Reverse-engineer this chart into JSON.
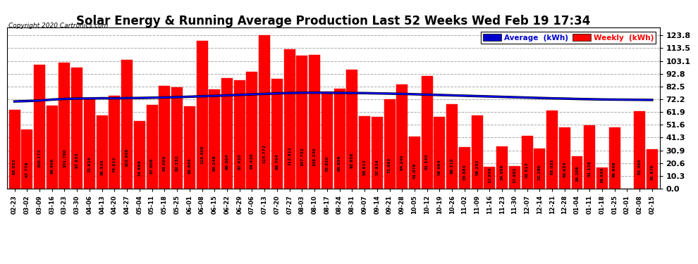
{
  "title": "Solar Energy & Running Average Production Last 52 Weeks Wed Feb 19 17:34",
  "copyright": "Copyright 2020 Cartronics.com",
  "categories": [
    "02-23",
    "03-02",
    "03-09",
    "03-16",
    "03-23",
    "03-30",
    "04-06",
    "04-13",
    "04-20",
    "04-27",
    "05-04",
    "05-11",
    "05-18",
    "05-25",
    "06-01",
    "06-08",
    "06-15",
    "06-22",
    "06-29",
    "07-06",
    "07-13",
    "07-20",
    "07-27",
    "08-03",
    "08-10",
    "08-17",
    "08-24",
    "08-31",
    "09-07",
    "09-14",
    "09-21",
    "09-28",
    "10-05",
    "10-12",
    "10-19",
    "10-26",
    "11-02",
    "11-09",
    "11-16",
    "11-23",
    "11-30",
    "12-07",
    "12-14",
    "12-21",
    "12-28",
    "01-04",
    "01-11",
    "01-18",
    "01-25",
    "02-01",
    "02-08",
    "02-15"
  ],
  "weekly_values": [
    63.552,
    47.776,
    100.272,
    66.908,
    101.78,
    97.632,
    72.924,
    59.32,
    74.912,
    103.908,
    54.668,
    67.608,
    83.0,
    82.152,
    66.804,
    119.3,
    80.248,
    89.204,
    87.62,
    94.42,
    123.772,
    88.704,
    112.812,
    107.752,
    108.24,
    78.62,
    80.956,
    95.956,
    58.612,
    57.824,
    71.992,
    84.24,
    41.876,
    91.14,
    58.084,
    68.316,
    33.684,
    59.252,
    17.936,
    34.056,
    17.992,
    42.512,
    32.28,
    63.032,
    49.624,
    26.208,
    51.128,
    16.936,
    49.648,
    0.096,
    62.46,
    31.676
  ],
  "avg_values": [
    70.5,
    70.8,
    71.2,
    72.0,
    72.5,
    72.8,
    72.9,
    73.1,
    73.0,
    73.2,
    73.3,
    73.5,
    73.7,
    74.0,
    74.3,
    74.7,
    75.0,
    75.4,
    75.8,
    76.2,
    76.6,
    77.0,
    77.3,
    77.5,
    77.6,
    77.5,
    77.4,
    77.3,
    77.2,
    77.0,
    76.8,
    76.6,
    76.3,
    76.0,
    75.7,
    75.4,
    75.1,
    74.8,
    74.5,
    74.2,
    73.9,
    73.6,
    73.3,
    73.0,
    72.8,
    72.5,
    72.3,
    72.1,
    72.0,
    71.9,
    71.8,
    71.7
  ],
  "bar_color": "#FF0000",
  "line_color": "#0000FF",
  "background_color": "#FFFFFF",
  "grid_color": "#AAAAAA",
  "yticks": [
    0.0,
    10.3,
    20.6,
    30.9,
    41.3,
    51.6,
    61.9,
    72.2,
    82.5,
    92.8,
    103.1,
    113.5,
    123.8
  ],
  "ylim": [
    0,
    130
  ],
  "title_fontsize": 12,
  "legend_labels": [
    "Average  (kWh)",
    "Weekly  (kWh)"
  ],
  "legend_colors": [
    "#0000CD",
    "#FF0000"
  ]
}
